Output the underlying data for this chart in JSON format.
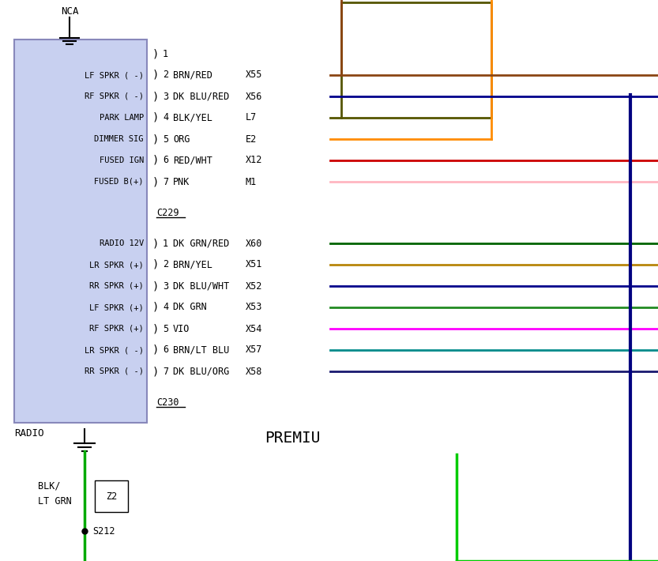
{
  "bg_color": "#ffffff",
  "fig_width": 8.33,
  "fig_height": 7.1,
  "box_color": "#c8d0f0",
  "box_edge_color": "#8888bb",
  "c229_rows": [
    {
      "num": "1",
      "label": "",
      "code": "",
      "color": null
    },
    {
      "num": "2",
      "label": "BRN/RED",
      "code": "X55",
      "color": "#8B4513"
    },
    {
      "num": "3",
      "label": "DK BLU/RED",
      "code": "X56",
      "color": "#00008B"
    },
    {
      "num": "4",
      "label": "BLK/YEL",
      "code": "L7",
      "color": "#555500"
    },
    {
      "num": "5",
      "label": "ORG",
      "code": "E2",
      "color": "#FF8C00"
    },
    {
      "num": "6",
      "label": "RED/WHT",
      "code": "X12",
      "color": "#CC0000"
    },
    {
      "num": "7",
      "label": "PNK",
      "code": "M1",
      "color": "#FFB6C1"
    }
  ],
  "c230_rows": [
    {
      "num": "1",
      "label": "DK GRN/RED",
      "code": "X60",
      "color": "#006400"
    },
    {
      "num": "2",
      "label": "BRN/YEL",
      "code": "X51",
      "color": "#B8860B"
    },
    {
      "num": "3",
      "label": "DK BLU/WHT",
      "code": "X52",
      "color": "#00008B"
    },
    {
      "num": "4",
      "label": "DK GRN",
      "code": "X53",
      "color": "#228B22"
    },
    {
      "num": "5",
      "label": "VIO",
      "code": "X54",
      "color": "#FF00FF"
    },
    {
      "num": "6",
      "label": "BRN/LT BLU",
      "code": "X57",
      "color": "#008B8B"
    },
    {
      "num": "7",
      "label": "DK BLU/ORG",
      "code": "X58",
      "color": "#191970"
    }
  ],
  "left_labels_c229": [
    "",
    "LF SPKR ( -)",
    "RF SPKR ( -)",
    "PARK LAMP",
    "DIMMER SIG",
    "FUSED IGN",
    "FUSED B(+)"
  ],
  "left_labels_c230": [
    "RADIO 12V",
    "LR SPKR (+)",
    "RR SPKR (+)",
    "LF SPKR (+)",
    "RF SPKR (+)",
    "LR SPKR ( -)",
    "RR SPKR ( -)"
  ],
  "title": "PREMIU",
  "nca_label": "NCA",
  "radio_label": "RADIO",
  "blk_label": "BLK/",
  "ltgrn_label": "LT GRN",
  "z2_label": "Z2",
  "s212_label": "S212",
  "c229_label": "C229",
  "c230_label": "C230"
}
